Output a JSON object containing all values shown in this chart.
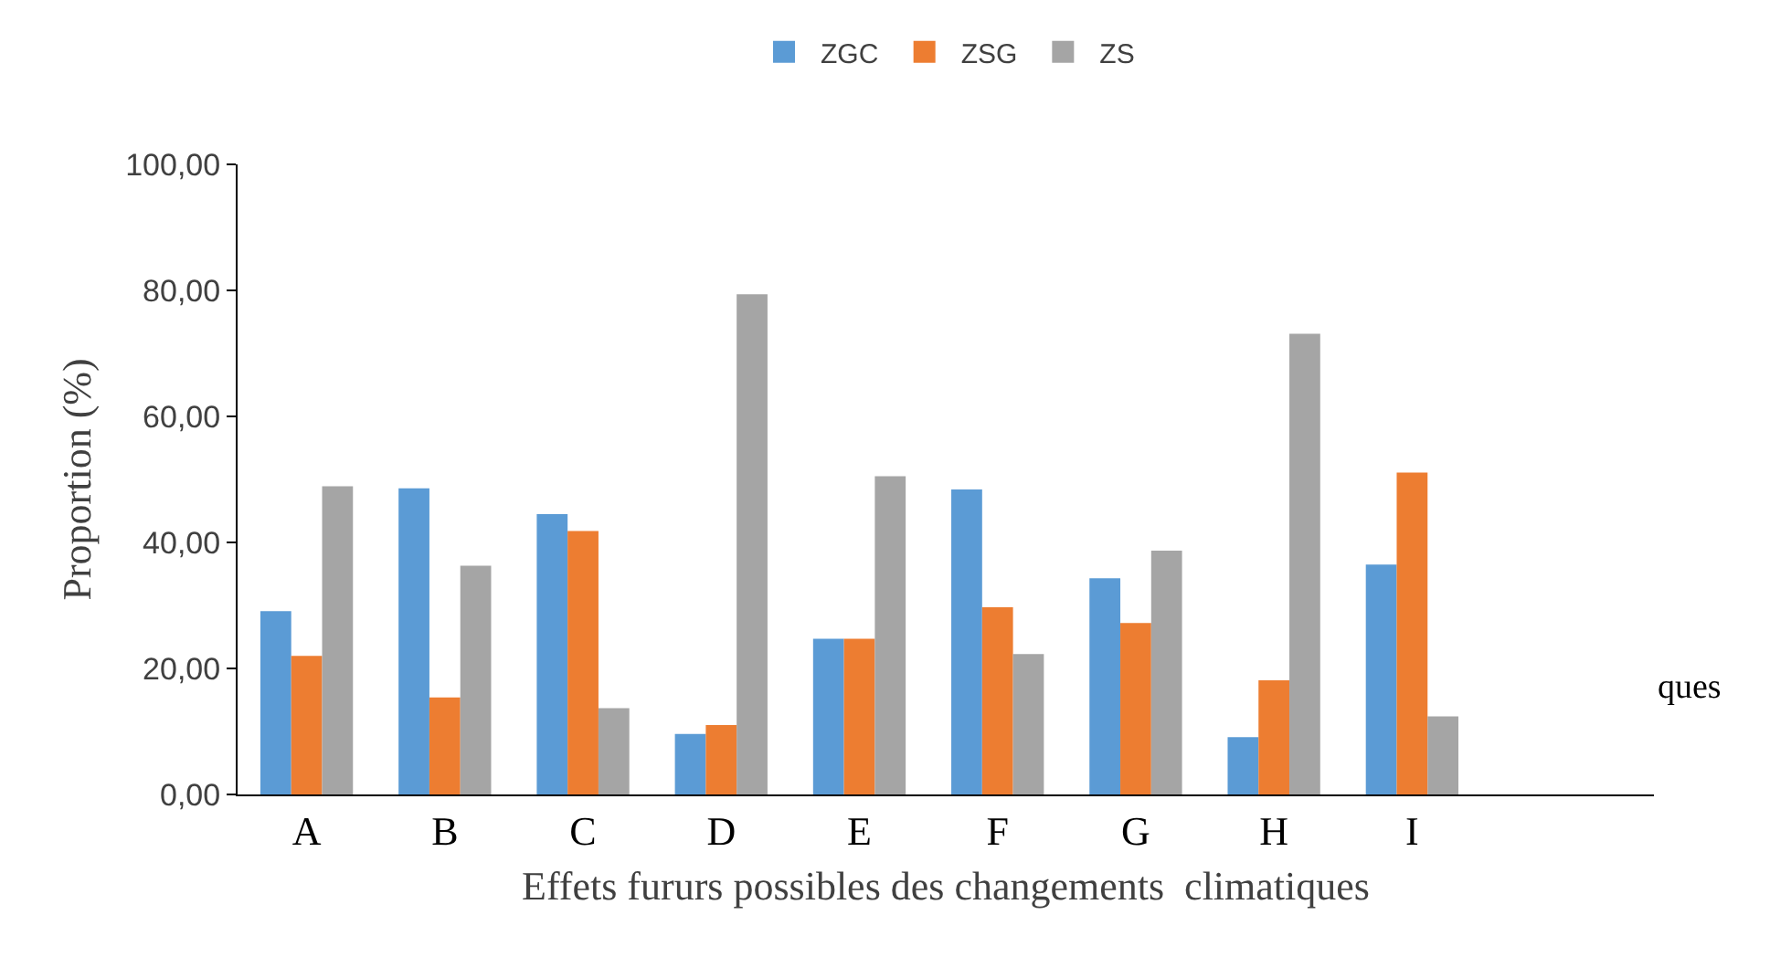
{
  "chart_data": {
    "type": "bar",
    "xlabel": "Effets fururs possibles des changements  climatiques",
    "ylabel": "Proportion (%)",
    "categories": [
      "A",
      "B",
      "C",
      "D",
      "E",
      "F",
      "G",
      "H",
      "I",
      null
    ],
    "series": [
      {
        "name": "ZGC",
        "color": "#5b9bd5",
        "values": [
          29.1,
          48.6,
          44.5,
          9.6,
          24.7,
          48.4,
          34.3,
          9.1,
          36.5,
          null
        ]
      },
      {
        "name": "ZSG",
        "color": "#ed7d31",
        "values": [
          22,
          15.4,
          41.8,
          11,
          24.7,
          29.7,
          27.2,
          18.1,
          51.1,
          null
        ]
      },
      {
        "name": "ZS",
        "color": "#a5a5a5",
        "values": [
          48.9,
          36.3,
          13.7,
          79.4,
          50.5,
          22.3,
          38.7,
          73.1,
          12.4,
          null
        ]
      }
    ],
    "ylim": [
      0,
      100
    ],
    "yticks": [
      {
        "value": 0,
        "label": "0,00"
      },
      {
        "value": 20,
        "label": "20,00"
      },
      {
        "value": 40,
        "label": "40,00"
      },
      {
        "value": 60,
        "label": "60,00"
      },
      {
        "value": 80,
        "label": "80,00"
      },
      {
        "value": 100,
        "label": "100,00"
      }
    ],
    "grid": false,
    "legend": "top",
    "annotations": [
      "ques"
    ]
  }
}
